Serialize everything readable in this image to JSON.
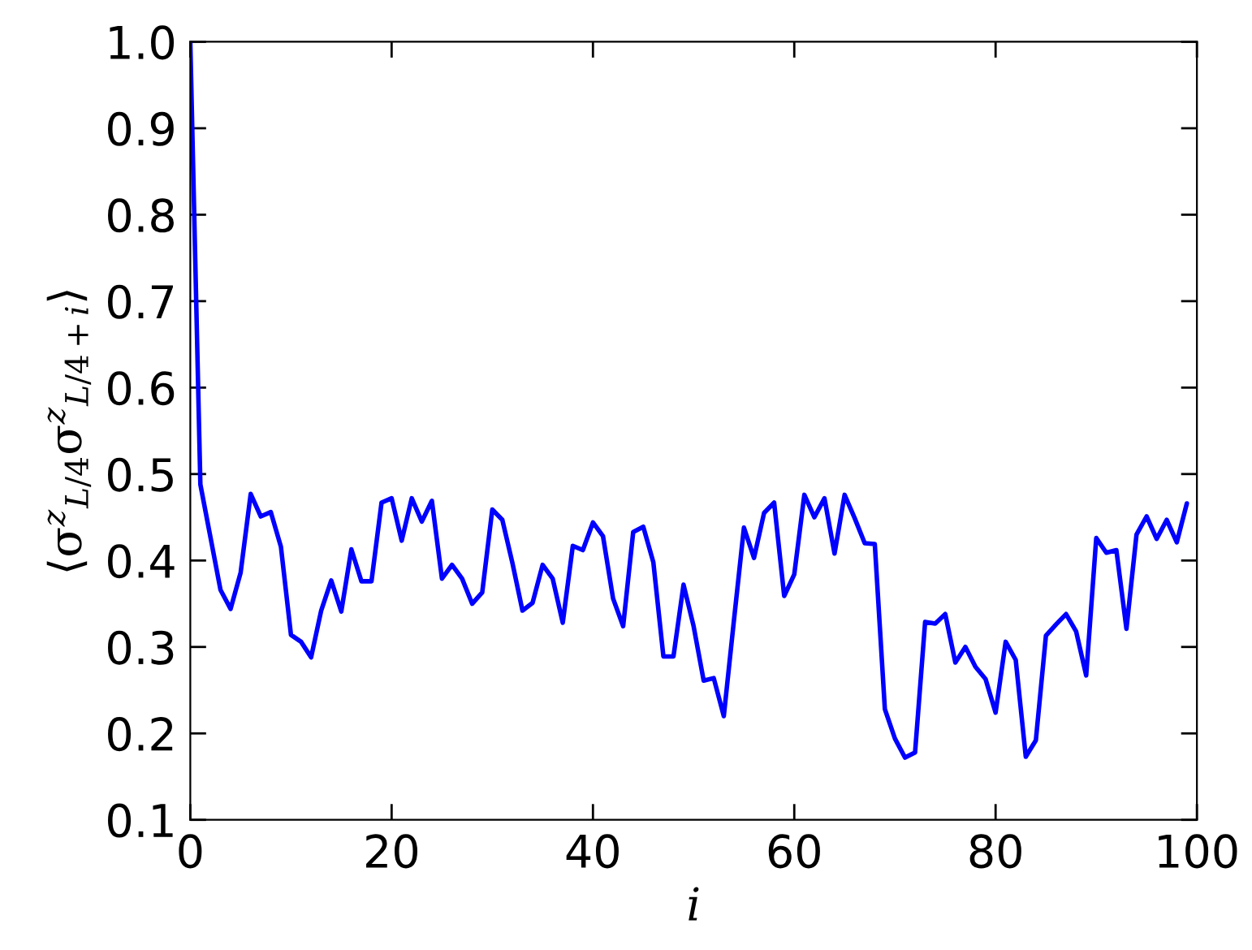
{
  "chart_data": {
    "type": "line",
    "xlabel": "i",
    "ylabel": "⟨σ$^{z}$$_{L/4}$σ$^{z}$$_{L/4+i}$⟩",
    "x": [
      0,
      1,
      2,
      3,
      4,
      5,
      6,
      7,
      8,
      9,
      10,
      11,
      12,
      13,
      14,
      15,
      16,
      17,
      18,
      19,
      20,
      21,
      22,
      23,
      24,
      25,
      26,
      27,
      28,
      29,
      30,
      31,
      32,
      33,
      34,
      35,
      36,
      37,
      38,
      39,
      40,
      41,
      42,
      43,
      44,
      45,
      46,
      47,
      48,
      49,
      50,
      51,
      52,
      53,
      54,
      55,
      56,
      57,
      58,
      59,
      60,
      61,
      62,
      63,
      64,
      65,
      66,
      67,
      68,
      69,
      70,
      71,
      72,
      73,
      74,
      75,
      76,
      77,
      78,
      79,
      80,
      81,
      82,
      83,
      84,
      85,
      86,
      87,
      88,
      89,
      90,
      91,
      92,
      93,
      94,
      95,
      96,
      97,
      98,
      99
    ],
    "series": [
      {
        "color": "#0000ff",
        "values": [
          1.0,
          0.488,
          0.427,
          0.366,
          0.344,
          0.386,
          0.477,
          0.451,
          0.456,
          0.416,
          0.314,
          0.306,
          0.288,
          0.342,
          0.377,
          0.341,
          0.413,
          0.376,
          0.376,
          0.467,
          0.472,
          0.423,
          0.472,
          0.445,
          0.469,
          0.379,
          0.395,
          0.379,
          0.35,
          0.363,
          0.459,
          0.447,
          0.397,
          0.342,
          0.351,
          0.395,
          0.379,
          0.328,
          0.417,
          0.412,
          0.444,
          0.428,
          0.356,
          0.324,
          0.433,
          0.439,
          0.398,
          0.289,
          0.289,
          0.372,
          0.324,
          0.261,
          0.264,
          0.22,
          0.33,
          0.438,
          0.403,
          0.455,
          0.467,
          0.359,
          0.384,
          0.476,
          0.45,
          0.472,
          0.408,
          0.476,
          0.449,
          0.42,
          0.419,
          0.228,
          0.194,
          0.172,
          0.178,
          0.329,
          0.327,
          0.338,
          0.282,
          0.3,
          0.277,
          0.263,
          0.224,
          0.306,
          0.285,
          0.173,
          0.192,
          0.313,
          0.326,
          0.338,
          0.318,
          0.267,
          0.426,
          0.409,
          0.412,
          0.321,
          0.43,
          0.451,
          0.425,
          0.447,
          0.421,
          0.466
        ]
      }
    ],
    "xlim": [
      0,
      100
    ],
    "ylim": [
      0.1,
      1.0
    ],
    "xticks": [
      0,
      20,
      40,
      60,
      80,
      100
    ],
    "yticks": [
      0.1,
      0.2,
      0.3,
      0.4,
      0.5,
      0.6,
      0.7,
      0.8,
      0.9,
      {
        "value": 1.0,
        "label": "1.0"
      }
    ],
    "grid": false,
    "marker": "none",
    "line_style": "solid"
  }
}
